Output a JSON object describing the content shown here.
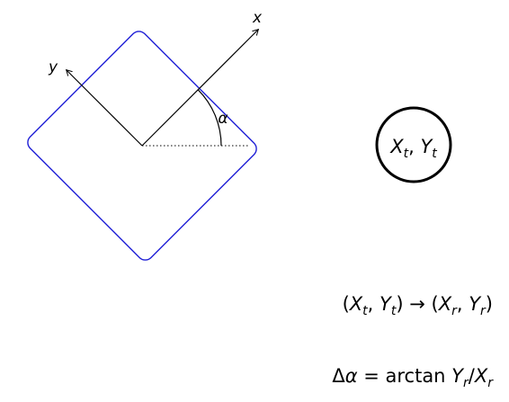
{
  "diagram": {
    "axes": {
      "x_label": "x",
      "y_label": "y",
      "angle_label": "α"
    },
    "target": {
      "X": "X",
      "X_sub": "t",
      "comma": ", ",
      "Y": "Y",
      "Y_sub": "t"
    },
    "transform_eq": {
      "lparen": "(",
      "Xt": "X",
      "Xt_sub": "t",
      "sep1": ", ",
      "Yt": "Y",
      "Yt_sub": "t",
      "mid": ") → (",
      "Xr": "X",
      "Xr_sub": "r",
      "sep2": ", ",
      "Yr": "Y",
      "Yr_sub": "r",
      "rparen": ")"
    },
    "angle_eq": {
      "delta": "Δ",
      "alpha": "α",
      "equals": " = arctan ",
      "Y": "Y",
      "Y_sub": "r",
      "slash": "/",
      "X": "X",
      "X_sub": "r"
    },
    "colors": {
      "robot_outline": "#1f1fd6",
      "axes": "#000000",
      "target_circle": "#000000"
    }
  }
}
